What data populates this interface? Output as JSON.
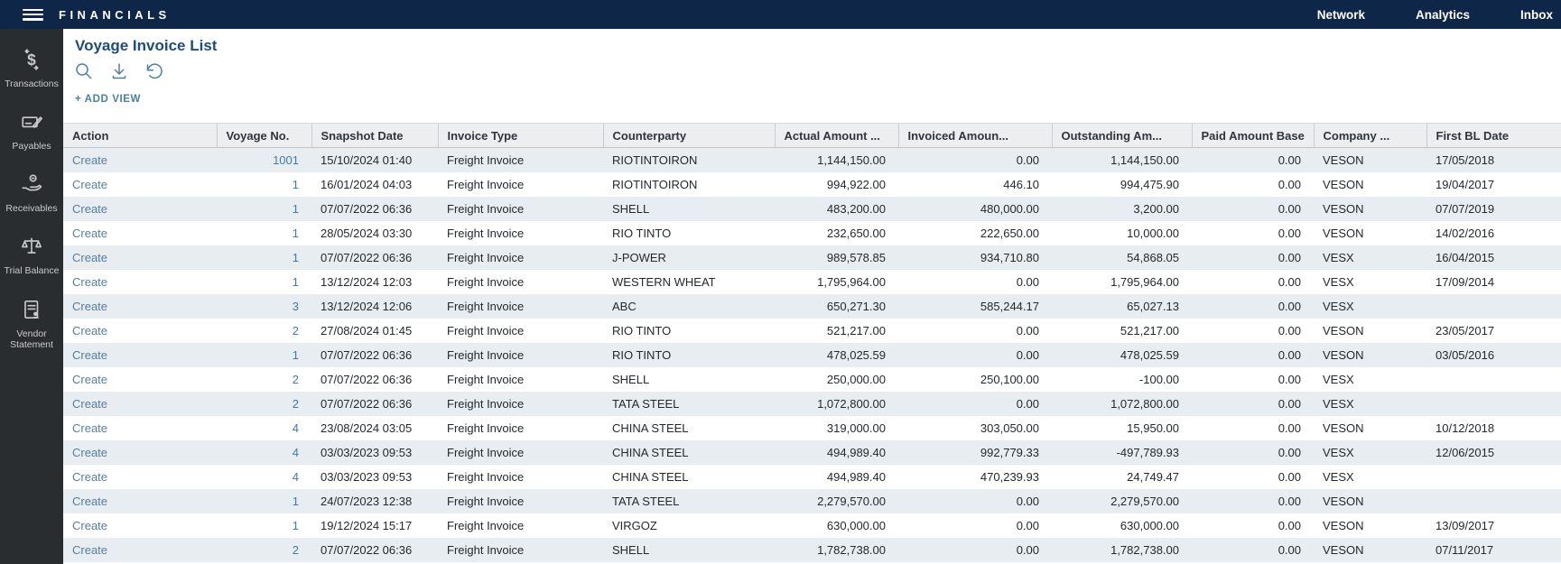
{
  "app_bar": {
    "title": "FINANCIALS",
    "nav": [
      {
        "label": "Network"
      },
      {
        "label": "Analytics"
      },
      {
        "label": "Inbox"
      }
    ]
  },
  "sidebar": {
    "items": [
      {
        "label": "Transactions",
        "icon": "transactions-icon"
      },
      {
        "label": "Payables",
        "icon": "payables-icon"
      },
      {
        "label": "Receivables",
        "icon": "receivables-icon"
      },
      {
        "label": "Trial Balance",
        "icon": "trial-balance-icon"
      },
      {
        "label": "Vendor Statement",
        "icon": "vendor-statement-icon"
      }
    ]
  },
  "page": {
    "title": "Voyage Invoice List",
    "add_view_label": "+ ADD VIEW",
    "toolbar_icons": [
      "search-icon",
      "download-icon",
      "undo-icon"
    ]
  },
  "table": {
    "columns": [
      {
        "key": "action",
        "label": "Action"
      },
      {
        "key": "voyage-no",
        "label": "Voyage No."
      },
      {
        "key": "snapshot-date",
        "label": "Snapshot Date"
      },
      {
        "key": "invoice-type",
        "label": "Invoice Type"
      },
      {
        "key": "counterparty",
        "label": "Counterparty"
      },
      {
        "key": "actual-amount",
        "label": "Actual Amount ..."
      },
      {
        "key": "invoiced-amount",
        "label": "Invoiced Amoun..."
      },
      {
        "key": "outstanding-amount",
        "label": "Outstanding Am..."
      },
      {
        "key": "paid-amount-base",
        "label": "Paid Amount Base"
      },
      {
        "key": "company",
        "label": "Company ..."
      },
      {
        "key": "first-bl-date",
        "label": "First BL Date"
      }
    ],
    "rows": [
      [
        "Create",
        "1001",
        "15/10/2024 01:40",
        "Freight Invoice",
        "RIOTINTOIRON",
        "1,144,150.00",
        "0.00",
        "1,144,150.00",
        "0.00",
        "VESON",
        "17/05/2018"
      ],
      [
        "Create",
        "1",
        "16/01/2024 04:03",
        "Freight Invoice",
        "RIOTINTOIRON",
        "994,922.00",
        "446.10",
        "994,475.90",
        "0.00",
        "VESON",
        "19/04/2017"
      ],
      [
        "Create",
        "1",
        "07/07/2022 06:36",
        "Freight Invoice",
        "SHELL",
        "483,200.00",
        "480,000.00",
        "3,200.00",
        "0.00",
        "VESON",
        "07/07/2019"
      ],
      [
        "Create",
        "1",
        "28/05/2024 03:30",
        "Freight Invoice",
        "RIO TINTO",
        "232,650.00",
        "222,650.00",
        "10,000.00",
        "0.00",
        "VESON",
        "14/02/2016"
      ],
      [
        "Create",
        "1",
        "07/07/2022 06:36",
        "Freight Invoice",
        "J-POWER",
        "989,578.85",
        "934,710.80",
        "54,868.05",
        "0.00",
        "VESX",
        "16/04/2015"
      ],
      [
        "Create",
        "1",
        "13/12/2024 12:03",
        "Freight Invoice",
        "WESTERN WHEAT",
        "1,795,964.00",
        "0.00",
        "1,795,964.00",
        "0.00",
        "VESX",
        "17/09/2014"
      ],
      [
        "Create",
        "3",
        "13/12/2024 12:06",
        "Freight Invoice",
        "ABC",
        "650,271.30",
        "585,244.17",
        "65,027.13",
        "0.00",
        "VESX",
        ""
      ],
      [
        "Create",
        "2",
        "27/08/2024 01:45",
        "Freight Invoice",
        "RIO TINTO",
        "521,217.00",
        "0.00",
        "521,217.00",
        "0.00",
        "VESON",
        "23/05/2017"
      ],
      [
        "Create",
        "1",
        "07/07/2022 06:36",
        "Freight Invoice",
        "RIO TINTO",
        "478,025.59",
        "0.00",
        "478,025.59",
        "0.00",
        "VESON",
        "03/05/2016"
      ],
      [
        "Create",
        "2",
        "07/07/2022 06:36",
        "Freight Invoice",
        "SHELL",
        "250,000.00",
        "250,100.00",
        "-100.00",
        "0.00",
        "VESX",
        ""
      ],
      [
        "Create",
        "2",
        "07/07/2022 06:36",
        "Freight Invoice",
        "TATA STEEL",
        "1,072,800.00",
        "0.00",
        "1,072,800.00",
        "0.00",
        "VESX",
        ""
      ],
      [
        "Create",
        "4",
        "23/08/2024 03:05",
        "Freight Invoice",
        "CHINA STEEL",
        "319,000.00",
        "303,050.00",
        "15,950.00",
        "0.00",
        "VESON",
        "10/12/2018"
      ],
      [
        "Create",
        "4",
        "03/03/2023 09:53",
        "Freight Invoice",
        "CHINA STEEL",
        "494,989.40",
        "992,779.33",
        "-497,789.93",
        "0.00",
        "VESX",
        "12/06/2015"
      ],
      [
        "Create",
        "4",
        "03/03/2023 09:53",
        "Freight Invoice",
        "CHINA STEEL",
        "494,989.40",
        "470,239.93",
        "24,749.47",
        "0.00",
        "VESX",
        ""
      ],
      [
        "Create",
        "1",
        "24/07/2023 12:38",
        "Freight Invoice",
        "TATA STEEL",
        "2,279,570.00",
        "0.00",
        "2,279,570.00",
        "0.00",
        "VESON",
        ""
      ],
      [
        "Create",
        "1",
        "19/12/2024 15:17",
        "Freight Invoice",
        "VIRGOZ",
        "630,000.00",
        "0.00",
        "630,000.00",
        "0.00",
        "VESON",
        "13/09/2017"
      ],
      [
        "Create",
        "2",
        "07/07/2022 06:36",
        "Freight Invoice",
        "SHELL",
        "1,782,738.00",
        "0.00",
        "1,782,738.00",
        "0.00",
        "VESON",
        "07/11/2017"
      ]
    ]
  },
  "colors": {
    "topbar_navy": "#0e2647",
    "sidebar_charcoal": "#2a2d30",
    "title_blue": "#1d4d7c",
    "accent_blue": "#4b80a4",
    "voyage_link": "#3e7ab0",
    "create_link": "#567e9f",
    "row_alt": "#e7edf1",
    "table_header_bg": "#eceef0"
  }
}
